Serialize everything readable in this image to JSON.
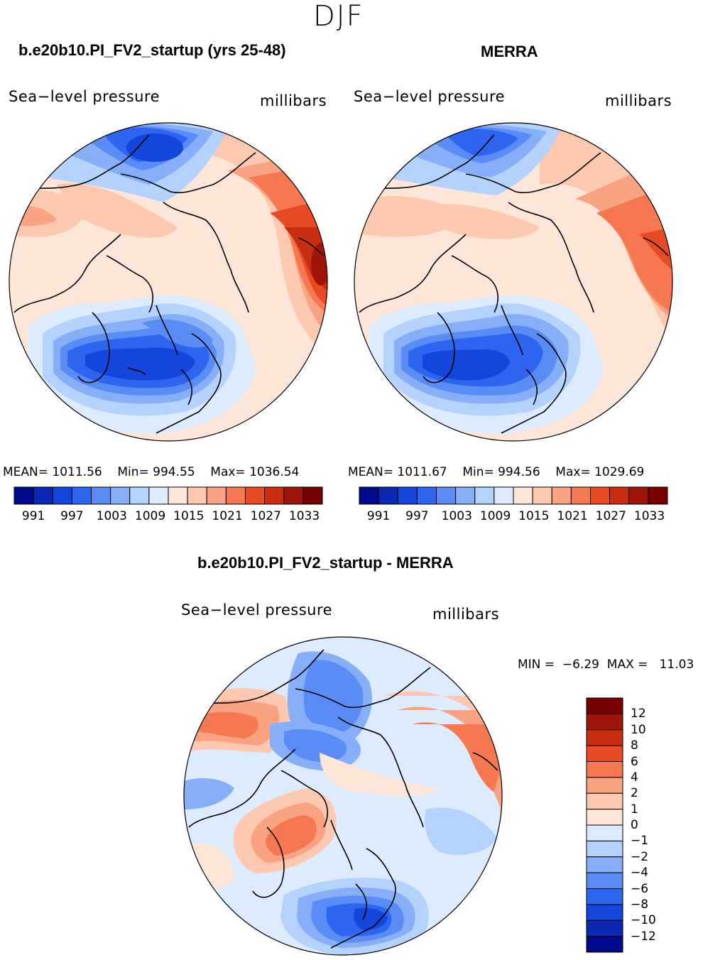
{
  "season": "DJF",
  "panels": [
    {
      "id": "model",
      "title": "b.e20b10.PI_FV2_startup (yrs 25-48)",
      "left_label": "Sea−level pressure",
      "right_label": "millibars",
      "stats": {
        "mean_label": "MEAN=",
        "mean": "1011.56",
        "min_label": "Min=",
        "min": "994.55",
        "max_label": "Max=",
        "max": "1036.54"
      }
    },
    {
      "id": "merra",
      "title": "MERRA",
      "left_label": "Sea−level pressure",
      "right_label": "millibars",
      "stats": {
        "mean_label": "MEAN=",
        "mean": "1011.67",
        "min_label": "Min=",
        "min": "994.56",
        "max_label": "Max=",
        "max": "1029.69"
      }
    },
    {
      "id": "diff",
      "title": "b.e20b10.PI_FV2_startup - MERRA",
      "left_label": "Sea−level pressure",
      "right_label": "millibars",
      "stats": {
        "min_label": "MIN =",
        "min": "−6.29",
        "max_label": "MAX =",
        "max": "11.03"
      }
    }
  ],
  "abs_colorbar": {
    "colors": [
      "#000a8c",
      "#0a28b4",
      "#1446dc",
      "#2d64f0",
      "#5a8cf5",
      "#87aff8",
      "#b4d2fb",
      "#dcebfd",
      "#fde6d7",
      "#fcc8af",
      "#f9a382",
      "#f57850",
      "#e64b26",
      "#c82d0f",
      "#a0140a",
      "#780000"
    ],
    "tick_labels": [
      "991",
      "997",
      "1003",
      "1009",
      "1015",
      "1021",
      "1027",
      "1033"
    ]
  },
  "diff_colorbar": {
    "colors": [
      "#000a8c",
      "#0a28b4",
      "#1446dc",
      "#2d64f0",
      "#5a8cf5",
      "#87aff8",
      "#b4d2fb",
      "#dcebfd",
      "#fde6d7",
      "#fcc8af",
      "#f9a382",
      "#f57850",
      "#e64b26",
      "#c82d0f",
      "#a0140a",
      "#780000"
    ],
    "tick_labels": [
      "12",
      "10",
      "8",
      "6",
      "4",
      "2",
      "1",
      "0",
      "−1",
      "−2",
      "−4",
      "−6",
      "−8",
      "−10",
      "−12"
    ]
  }
}
